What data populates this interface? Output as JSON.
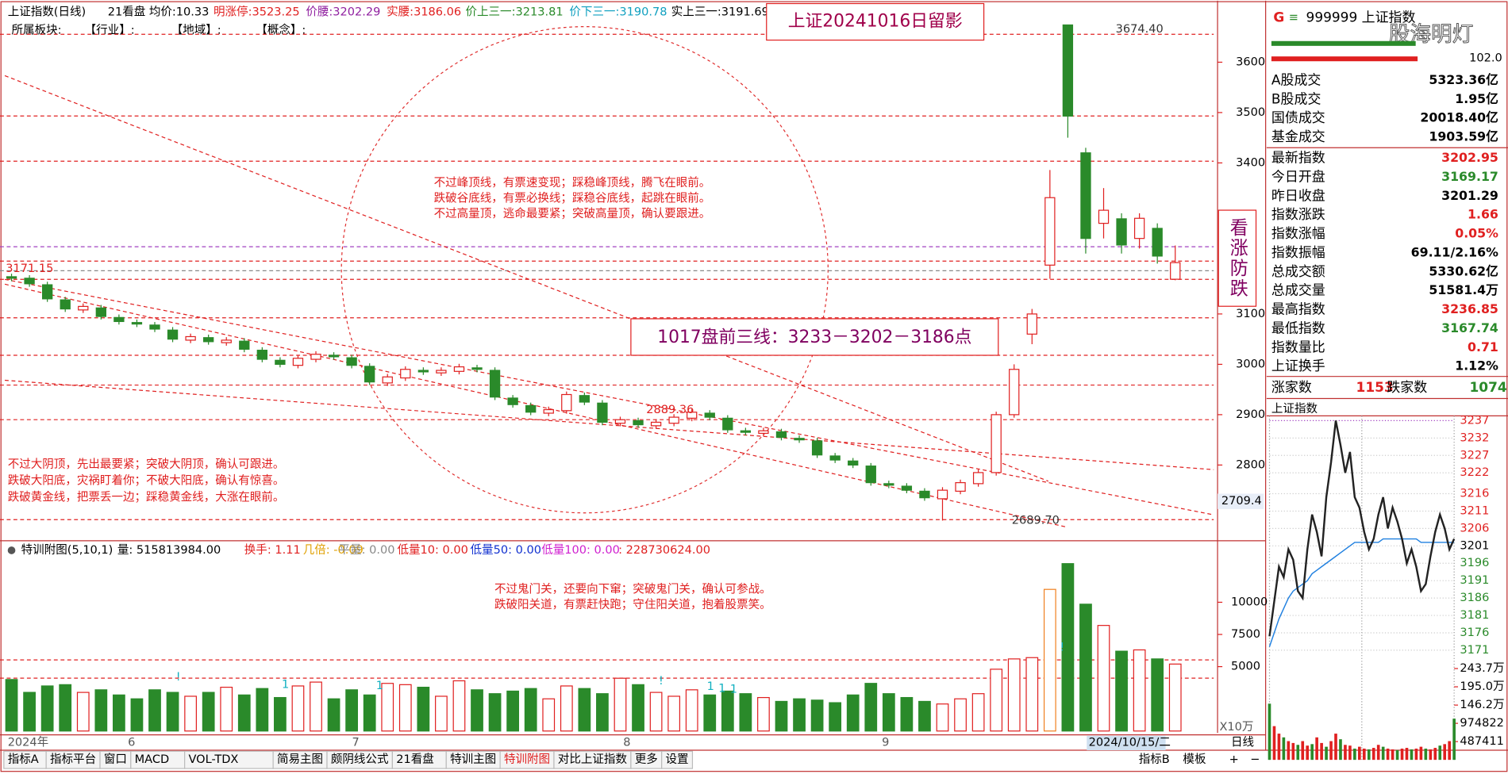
{
  "header": {
    "title": "上证指数(日线)",
    "items": [
      "21看盘",
      "均价:10.33",
      "明涨停:3523.25",
      "价腰:3202.29",
      "实腰:3186.06",
      "价上三一:3213.81",
      "价下三一:3190.78",
      "实上三一:3191.69"
    ],
    "row2": [
      "所属板块:",
      "【行业】:",
      "【地域】:",
      "【概念】:"
    ]
  },
  "price_chart": {
    "title_box": "上证20241016日留影",
    "side_box": "看涨防跌",
    "lines_box": "1017盘前三线：3233－3202－3186点",
    "poem_top": [
      "不过峰顶线，有票速变现；踩稳峰顶线，腾飞在眼前。",
      "跌破谷底线，有票必换线；踩稳谷底线，起跳在眼前。",
      "不过高量顶，逃命最要紧；突破高量顶，确认要跟进。"
    ],
    "poem_left": [
      "不过大阴顶，先出最要紧；突破大阴顶，确认可跟进。",
      "跌破大阳底，灾祸盯着你；不破大阳底，确认有惊喜。",
      "跌破黄金线，把票丢一边；踩稳黄金线，大涨在眼前。"
    ],
    "price_labels": [
      "3674.40",
      "3171.15",
      "2889.36",
      "2689.70"
    ],
    "current_tag": "2709.4",
    "yticks": [
      3600,
      3500,
      3400,
      3100,
      3000,
      2900,
      2800
    ],
    "open": [
      3174,
      3171,
      3158,
      3128,
      3108,
      3112,
      3093,
      3083,
      3078,
      3068,
      3048,
      3053,
      3043,
      3046,
      3028,
      3008,
      2998,
      3010,
      3018,
      3013,
      2996,
      2963,
      2973,
      2988,
      2983,
      2986,
      2993,
      2988,
      2933,
      2918,
      2903,
      2908,
      2938,
      2923,
      2883,
      2888,
      2878,
      2883,
      2893,
      2903,
      2893,
      2868,
      2863,
      2866,
      2853,
      2848,
      2818,
      2808,
      2798,
      2763,
      2758,
      2748,
      2733,
      2748,
      2763,
      2785,
      2900,
      3060,
      3197,
      3674,
      3420,
      3280,
      3289,
      3250,
      3270,
      3169
    ],
    "high": [
      3180,
      3177,
      3164,
      3134,
      3121,
      3118,
      3099,
      3089,
      3084,
      3074,
      3061,
      3059,
      3054,
      3052,
      3034,
      3014,
      3018,
      3026,
      3024,
      3019,
      3002,
      2981,
      2996,
      2994,
      2994,
      3001,
      2999,
      2994,
      2939,
      2924,
      2916,
      2946,
      2944,
      2929,
      2896,
      2894,
      2891,
      2901,
      2911,
      2909,
      2899,
      2874,
      2874,
      2872,
      2859,
      2854,
      2824,
      2814,
      2804,
      2769,
      2764,
      2754,
      2756,
      2771,
      2791,
      2906,
      3000,
      3110,
      3386,
      3674.4,
      3430,
      3350,
      3300,
      3300,
      3280,
      3236
    ],
    "low": [
      3165,
      3154,
      3124,
      3104,
      3102,
      3089,
      3079,
      3074,
      3064,
      3044,
      3042,
      3039,
      3037,
      3024,
      3004,
      2994,
      2992,
      3004,
      3009,
      2992,
      2959,
      2957,
      2967,
      2979,
      2977,
      2980,
      2984,
      2929,
      2914,
      2899,
      2897,
      2902,
      2919,
      2879,
      2877,
      2874,
      2872,
      2877,
      2887,
      2889,
      2864,
      2859,
      2857,
      2849,
      2844,
      2814,
      2804,
      2794,
      2759,
      2754,
      2744,
      2729,
      2689.7,
      2742,
      2757,
      2779,
      2894,
      3040,
      3170,
      3450,
      3220,
      3250,
      3220,
      3230,
      3200,
      3167
    ],
    "close": [
      3171,
      3160,
      3130,
      3110,
      3115,
      3095,
      3085,
      3080,
      3070,
      3050,
      3055,
      3045,
      3048,
      3030,
      3010,
      3000,
      3012,
      3020,
      3015,
      2998,
      2965,
      2975,
      2990,
      2985,
      2988,
      2995,
      2990,
      2935,
      2920,
      2905,
      2910,
      2940,
      2925,
      2885,
      2890,
      2880,
      2885,
      2895,
      2905,
      2895,
      2870,
      2865,
      2868,
      2855,
      2850,
      2820,
      2810,
      2800,
      2765,
      2760,
      2750,
      2735,
      2750,
      2765,
      2785,
      2900,
      2990,
      3100,
      3331,
      3493,
      3250,
      3306,
      3237,
      3290,
      3215,
      3202
    ]
  },
  "volume_chart": {
    "header": [
      "特训附图(5,10,1)",
      "量: 515813984.00",
      "换手: 1.11",
      "几倍: -0.09",
      "平量: 0.00",
      "低量10: 0.00",
      "低量50: 0.00",
      "低量100: 0.00",
      ": 228730624.00"
    ],
    "poem": [
      "不过鬼门关，还要向下窜；突破鬼门关，确认可参战。",
      "跌破阳关道，有票赶快跑；守住阳关道，抱着股票笑。"
    ],
    "flags": [
      "!",
      "1",
      "1",
      "!",
      "1",
      "1",
      "1",
      "!"
    ],
    "unit": "X10万",
    "yticks": [
      10000,
      7500,
      5000
    ],
    "values": [
      4000,
      3000,
      3500,
      3600,
      3000,
      3200,
      2800,
      2500,
      3200,
      3000,
      2700,
      3000,
      3400,
      2800,
      3300,
      2600,
      3500,
      3800,
      2500,
      3200,
      2800,
      3700,
      3600,
      3400,
      2700,
      3900,
      3200,
      2900,
      3100,
      3300,
      2500,
      3500,
      3300,
      2900,
      4100,
      3600,
      3000,
      2700,
      3200,
      2800,
      3100,
      2900,
      2600,
      2300,
      2500,
      2400,
      2200,
      2800,
      3700,
      2900,
      2600,
      2300,
      2100,
      2500,
      2900,
      4800,
      5600,
      5700,
      11000,
      13000,
      9850,
      8200,
      6200,
      6300,
      5600,
      5200
    ]
  },
  "x_axis": {
    "labels": [
      "2024年",
      "6",
      "7",
      "8",
      "9"
    ],
    "cursor_date": "2024/10/15/二",
    "period": "日线"
  },
  "toolbar": {
    "tabs": [
      "指标A",
      "指标平台",
      "窗口",
      "MACD",
      "VOL-TDX",
      "简易主图",
      "颇阴线公式",
      "21看盘",
      "特训主图",
      "特训附图",
      "对比上证指数",
      "更多",
      "设置"
    ],
    "right": [
      "指标B",
      "模板",
      "+",
      "−"
    ]
  },
  "quote_panel": {
    "code": "G",
    "menu": "≡",
    "name": "999999 上证指数",
    "watermark": "股海明灯",
    "bar_value": "102.0",
    "rows": [
      {
        "label": "A股成交",
        "value": "5323.36亿"
      },
      {
        "label": "B股成交",
        "value": "1.95亿"
      },
      {
        "label": "国债成交",
        "value": "20018.40亿"
      },
      {
        "label": "基金成交",
        "value": "1903.59亿"
      },
      {
        "label": "最新指数",
        "value": "3202.95"
      },
      {
        "label": "今日开盘",
        "value": "3169.17"
      },
      {
        "label": "昨日收盘",
        "value": "3201.29"
      },
      {
        "label": "指数涨跌",
        "value": "1.66"
      },
      {
        "label": "指数涨幅",
        "value": "0.05%"
      },
      {
        "label": "指数振幅",
        "value": "69.11/2.16%"
      },
      {
        "label": "总成交额",
        "value": "5330.62亿"
      },
      {
        "label": "总成交量",
        "value": "51581.4万"
      },
      {
        "label": "最高指数",
        "value": "3236.85"
      },
      {
        "label": "最低指数",
        "value": "3167.74"
      },
      {
        "label": "指数量比",
        "value": "0.71"
      },
      {
        "label": "上证换手",
        "value": "1.12%"
      }
    ],
    "breadth": [
      "涨家数",
      "1153",
      "跌家数",
      "1074"
    ]
  },
  "mini_chart": {
    "title": "上证指数",
    "yticks": [
      3237,
      3232,
      3227,
      3222,
      3216,
      3211,
      3206,
      3201,
      3196,
      3191,
      3186,
      3181,
      3176,
      3171
    ],
    "vticks": [
      {
        "value": 2437000,
        "label": "243.7万"
      },
      {
        "value": 1950000,
        "label": "195.0万"
      },
      {
        "value": 1462000,
        "label": "146.2万"
      },
      974822,
      487411
    ],
    "price": [
      3175,
      3185,
      3195,
      3192,
      3200,
      3197,
      3188,
      3186,
      3200,
      3210,
      3205,
      3198,
      3215,
      3225,
      3237,
      3230,
      3222,
      3228,
      3215,
      3212,
      3205,
      3200,
      3203,
      3210,
      3215,
      3206,
      3212,
      3208,
      3203,
      3196,
      3200,
      3195,
      3188,
      3190,
      3198,
      3205,
      3210,
      3206,
      3200,
      3203
    ],
    "average": [
      3172,
      3176,
      3180,
      3183,
      3186,
      3188,
      3189,
      3190,
      3191,
      3193,
      3194,
      3195,
      3196,
      3197,
      3198,
      3199,
      3200,
      3201,
      3202,
      3202,
      3202,
      3202,
      3202,
      3202,
      3203,
      3203,
      3203,
      3203,
      3203,
      3203,
      3203,
      3203,
      3202,
      3202,
      3202,
      3202,
      3202,
      3202,
      3202,
      3202
    ],
    "volume": [
      1500000,
      900000,
      700000,
      600000,
      500000,
      450000,
      400000,
      500000,
      380000,
      420000,
      600000,
      450000,
      350000,
      500000,
      700000,
      550000,
      400000,
      380000,
      300000,
      350000,
      300000,
      280000,
      320000,
      400000,
      350000,
      300000,
      280000,
      260000,
      300000,
      320000,
      280000,
      300000,
      350000,
      300000,
      280000,
      320000,
      380000,
      420000,
      500000,
      1100000
    ]
  }
}
